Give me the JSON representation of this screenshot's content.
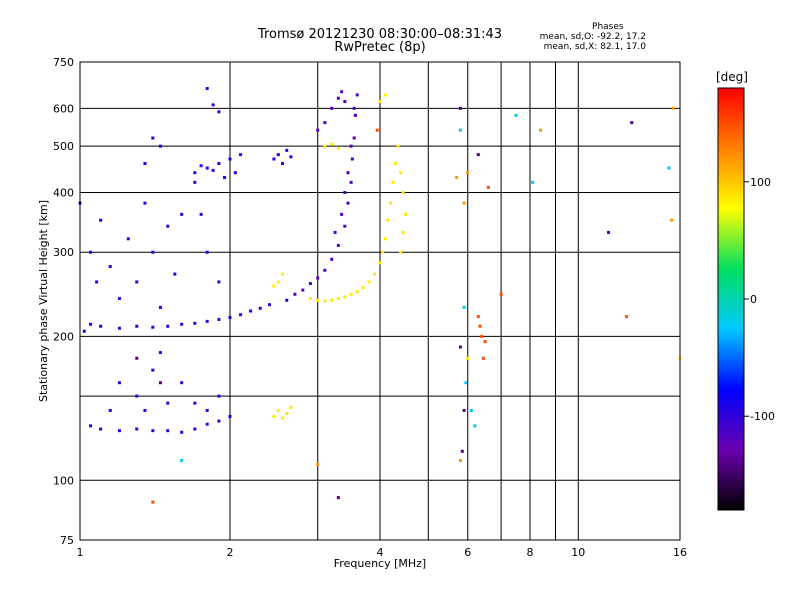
{
  "header": {
    "title_line1": "Tromsø 20121230 08:30:00–08:31:43",
    "title_line2": "RwPretec (8p)"
  },
  "stats": {
    "heading": "Phases",
    "line_o": "mean, sd,O: -92.2, 17.2",
    "line_x": "mean, sd,X:  82.1, 17.0"
  },
  "chart_data": {
    "type": "scatter",
    "xlabel": "Frequency [MHz]",
    "ylabel": "Stationary phase Virtual Height [km]",
    "x_scale": "log",
    "y_scale": "log",
    "xlim": [
      1,
      16
    ],
    "ylim": [
      75,
      750
    ],
    "x_ticks": [
      1,
      2,
      4,
      6,
      8,
      10,
      16
    ],
    "x_minor_ticks": [
      3,
      5,
      7,
      9
    ],
    "y_ticks": [
      75,
      100,
      200,
      300,
      400,
      500,
      600,
      750
    ],
    "y_minor_ticks": [
      150
    ],
    "grid": true,
    "colorbar": {
      "unit": "[deg]",
      "min": -180,
      "max": 180,
      "ticks": [
        -100,
        0,
        100
      ],
      "colors": [
        "#000000",
        "#6a00b0",
        "#0000ff",
        "#00c8ff",
        "#00e060",
        "#ffff00",
        "#ff8000",
        "#ff0000"
      ]
    },
    "series": [
      {
        "phase_deg": -100,
        "points": [
          [
            1.02,
            205
          ],
          [
            1.05,
            212
          ],
          [
            1.1,
            210
          ],
          [
            1.2,
            208
          ],
          [
            1.3,
            210
          ],
          [
            1.4,
            209
          ],
          [
            1.5,
            210
          ],
          [
            1.6,
            212
          ],
          [
            1.7,
            213
          ],
          [
            1.8,
            215
          ],
          [
            1.9,
            217
          ],
          [
            2.0,
            219
          ],
          [
            2.1,
            222
          ],
          [
            2.2,
            226
          ],
          [
            2.3,
            229
          ],
          [
            2.4,
            233
          ],
          [
            2.6,
            238
          ],
          [
            1.05,
            130
          ],
          [
            1.1,
            128
          ],
          [
            1.2,
            127
          ],
          [
            1.3,
            128
          ],
          [
            1.4,
            127
          ],
          [
            1.5,
            127
          ],
          [
            1.6,
            126
          ],
          [
            1.7,
            128
          ],
          [
            1.8,
            131
          ],
          [
            1.9,
            133
          ],
          [
            2.0,
            136
          ]
        ]
      },
      {
        "phase_deg": -100,
        "points": [
          [
            1.0,
            380
          ],
          [
            1.05,
            300
          ],
          [
            1.08,
            260
          ],
          [
            1.1,
            350
          ],
          [
            1.15,
            280
          ],
          [
            1.2,
            240
          ],
          [
            1.25,
            320
          ],
          [
            1.3,
            260
          ],
          [
            1.35,
            380
          ],
          [
            1.4,
            300
          ],
          [
            1.45,
            230
          ],
          [
            1.5,
            340
          ],
          [
            1.55,
            270
          ],
          [
            1.6,
            360
          ],
          [
            1.7,
            420
          ],
          [
            1.8,
            300
          ],
          [
            1.9,
            260
          ],
          [
            1.75,
            360
          ],
          [
            1.2,
            160
          ],
          [
            1.3,
            150
          ],
          [
            1.4,
            170
          ],
          [
            1.5,
            145
          ],
          [
            1.6,
            160
          ],
          [
            1.7,
            145
          ],
          [
            1.8,
            140
          ],
          [
            1.9,
            150
          ],
          [
            1.15,
            140
          ],
          [
            1.45,
            185
          ],
          [
            1.35,
            140
          ]
        ]
      },
      {
        "phase_deg": -95,
        "points": [
          [
            1.7,
            440
          ],
          [
            1.8,
            450
          ],
          [
            1.9,
            460
          ],
          [
            2.0,
            470
          ],
          [
            2.1,
            480
          ],
          [
            2.05,
            440
          ],
          [
            1.95,
            430
          ],
          [
            1.85,
            445
          ],
          [
            1.75,
            455
          ],
          [
            2.45,
            470
          ],
          [
            2.5,
            480
          ],
          [
            2.55,
            460
          ],
          [
            2.6,
            490
          ],
          [
            2.65,
            475
          ],
          [
            1.4,
            520
          ],
          [
            1.45,
            500
          ],
          [
            1.35,
            460
          ],
          [
            1.8,
            660
          ],
          [
            1.85,
            610
          ],
          [
            1.9,
            590
          ]
        ]
      },
      {
        "phase_deg": -115,
        "points": [
          [
            2.7,
            245
          ],
          [
            2.8,
            250
          ],
          [
            2.9,
            258
          ],
          [
            3.0,
            265
          ],
          [
            3.1,
            275
          ],
          [
            3.2,
            290
          ],
          [
            3.3,
            310
          ],
          [
            3.4,
            340
          ],
          [
            3.45,
            380
          ],
          [
            3.5,
            420
          ],
          [
            3.52,
            470
          ],
          [
            3.55,
            520
          ],
          [
            3.57,
            580
          ],
          [
            3.6,
            640
          ],
          [
            3.55,
            600
          ],
          [
            3.5,
            500
          ],
          [
            3.45,
            440
          ],
          [
            3.4,
            400
          ],
          [
            3.35,
            360
          ],
          [
            3.25,
            330
          ],
          [
            3.0,
            540
          ],
          [
            3.1,
            560
          ],
          [
            3.2,
            600
          ],
          [
            3.3,
            630
          ],
          [
            3.35,
            650
          ],
          [
            3.4,
            620
          ]
        ]
      },
      {
        "phase_deg": 85,
        "points": [
          [
            2.9,
            240
          ],
          [
            3.0,
            238
          ],
          [
            3.1,
            237
          ],
          [
            3.2,
            238
          ],
          [
            3.3,
            240
          ],
          [
            3.4,
            242
          ],
          [
            3.5,
            245
          ],
          [
            3.6,
            248
          ],
          [
            3.7,
            253
          ],
          [
            3.8,
            260
          ],
          [
            3.9,
            270
          ],
          [
            4.0,
            285
          ],
          [
            4.05,
            300
          ],
          [
            4.1,
            320
          ],
          [
            4.15,
            350
          ],
          [
            4.2,
            380
          ],
          [
            4.25,
            420
          ],
          [
            4.3,
            460
          ],
          [
            4.35,
            500
          ],
          [
            4.4,
            440
          ],
          [
            4.45,
            400
          ],
          [
            4.5,
            360
          ],
          [
            4.45,
            330
          ],
          [
            4.4,
            300
          ],
          [
            2.5,
            260
          ],
          [
            2.55,
            270
          ],
          [
            2.45,
            255
          ],
          [
            2.5,
            140
          ],
          [
            2.55,
            135
          ],
          [
            2.6,
            138
          ],
          [
            2.65,
            142
          ],
          [
            2.45,
            136
          ],
          [
            3.1,
            500
          ],
          [
            3.2,
            505
          ],
          [
            3.3,
            495
          ],
          [
            4.0,
            620
          ],
          [
            4.1,
            640
          ],
          [
            6.0,
            180
          ],
          [
            16,
            180
          ]
        ]
      },
      {
        "phase_deg": 150,
        "points": [
          [
            6.3,
            220
          ],
          [
            6.35,
            210
          ],
          [
            6.4,
            200
          ],
          [
            6.5,
            195
          ],
          [
            6.45,
            180
          ],
          [
            6.6,
            410
          ],
          [
            3.95,
            540
          ],
          [
            1.4,
            90
          ],
          [
            7.0,
            245
          ],
          [
            12.5,
            220
          ]
        ]
      },
      {
        "phase_deg": -140,
        "points": [
          [
            5.8,
            600
          ],
          [
            5.9,
            140
          ],
          [
            5.85,
            115
          ],
          [
            6.3,
            480
          ],
          [
            1.45,
            160
          ],
          [
            1.3,
            180
          ],
          [
            3.3,
            92
          ],
          [
            12.8,
            560
          ],
          [
            11.5,
            330
          ],
          [
            5.8,
            190
          ]
        ]
      },
      {
        "phase_deg": -20,
        "points": [
          [
            6.1,
            140
          ],
          [
            5.95,
            160
          ],
          [
            6.2,
            130
          ],
          [
            5.9,
            230
          ],
          [
            5.8,
            540
          ],
          [
            7.5,
            580
          ],
          [
            15.2,
            450
          ],
          [
            8.1,
            420
          ],
          [
            1.6,
            110
          ]
        ]
      },
      {
        "phase_deg": 120,
        "points": [
          [
            5.7,
            430
          ],
          [
            6.0,
            440
          ],
          [
            8.4,
            540
          ],
          [
            15.4,
            350
          ],
          [
            3.0,
            108
          ],
          [
            5.8,
            110
          ],
          [
            5.9,
            380
          ],
          [
            15.5,
            600
          ]
        ]
      }
    ]
  }
}
